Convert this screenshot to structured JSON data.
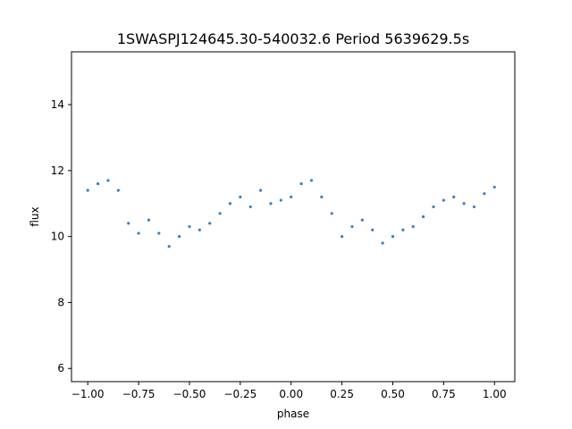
{
  "chart_data": {
    "type": "scatter",
    "title": "1SWASPJ124645.30-540032.6 Period 5639629.5s",
    "xlabel": "phase",
    "ylabel": "flux",
    "xlim": [
      -1.08,
      1.1
    ],
    "ylim": [
      5.6,
      15.6
    ],
    "xticks": [
      -1.0,
      -0.75,
      -0.5,
      -0.25,
      0.0,
      0.25,
      0.5,
      0.75,
      1.0
    ],
    "xtick_labels": [
      "−1.00",
      "−0.75",
      "−0.50",
      "−0.25",
      "0.00",
      "0.25",
      "0.50",
      "0.75",
      "1.00"
    ],
    "yticks": [
      6,
      8,
      10,
      12,
      14
    ],
    "ytick_labels": [
      "6",
      "8",
      "10",
      "12",
      "14"
    ],
    "grid": false,
    "marker_color": "#3a7fbf",
    "series": [
      {
        "x": [
          -1.0,
          -0.95,
          -0.9,
          -0.85,
          -0.8,
          -0.75,
          -0.7,
          -0.65,
          -0.6,
          -0.55,
          -0.5,
          -0.45,
          -0.4,
          -0.35,
          -0.3,
          -0.25,
          -0.2,
          -0.15,
          -0.1,
          -0.05,
          0.0,
          0.05,
          0.1,
          0.15,
          0.2,
          0.25,
          0.3,
          0.35,
          0.4,
          0.45,
          0.5,
          0.55,
          0.6,
          0.65,
          0.7,
          0.75,
          0.8,
          0.85,
          0.9,
          0.95,
          1.0
        ],
        "y": [
          11.4,
          11.6,
          11.7,
          11.4,
          10.4,
          10.1,
          10.5,
          10.1,
          9.7,
          10.0,
          10.3,
          10.2,
          10.4,
          10.7,
          11.0,
          11.2,
          10.9,
          11.4,
          11.0,
          11.1,
          11.2,
          11.6,
          11.7,
          11.2,
          10.7,
          10.0,
          10.3,
          10.5,
          10.2,
          9.8,
          10.0,
          10.2,
          10.3,
          10.6,
          10.9,
          11.1,
          11.2,
          11.0,
          10.9,
          11.3,
          11.5
        ]
      }
    ]
  }
}
